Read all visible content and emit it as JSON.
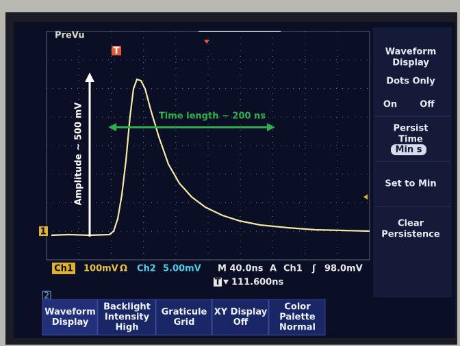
{
  "status": {
    "mode": "PreVu"
  },
  "markers": {
    "trigger": "T",
    "channel_1": "1",
    "channel_2": "2"
  },
  "annotations": {
    "amplitude": "Amplitude ~ 500 mV",
    "time_length": "Time length ~ 200 ns"
  },
  "side_menu": {
    "title": [
      "Waveform",
      "Display"
    ],
    "dots_only": "Dots Only",
    "on": "On",
    "off": "Off",
    "persist_time": [
      "Persist",
      "Time"
    ],
    "persist_value": "Min s",
    "set_to_min": "Set to Min",
    "clear_persistence": [
      "Clear",
      "Persistence"
    ]
  },
  "readout": {
    "ch1": "Ch1",
    "ch1_scale": "100mV",
    "ch1_impedance": "Ω",
    "ch2": "Ch2",
    "ch2_scale": "5.00mV",
    "timebase": "M 40.0ns",
    "trigger_mode": "A",
    "trigger_source": "Ch1",
    "trigger_slope": "ʃ",
    "trigger_level": "98.0mV",
    "trigger_position": "111.600ns"
  },
  "bottom_menu": [
    [
      "Waveform",
      "Display"
    ],
    [
      "Backlight",
      "Intensity",
      "High"
    ],
    [
      "Graticule",
      "Grid"
    ],
    [
      "XY Display",
      "Off"
    ],
    [
      "Color",
      "Palette",
      "Normal"
    ]
  ]
}
